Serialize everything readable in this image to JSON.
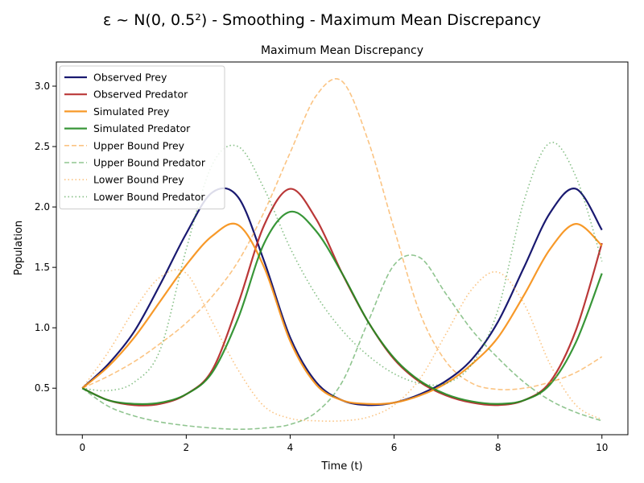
{
  "chart_data": {
    "type": "line",
    "suptitle": "ε ~ N(0, 0.5²) - Smoothing - Maximum Mean Discrepancy",
    "title": "Maximum Mean Discrepancy",
    "xlabel": "Time (t)",
    "ylabel": "Population",
    "xlim": [
      -0.5,
      10.5
    ],
    "ylim": [
      0.115,
      3.2
    ],
    "xticks": [
      0,
      2,
      4,
      6,
      8,
      10
    ],
    "yticks": [
      0.5,
      1.0,
      1.5,
      2.0,
      2.5,
      3.0
    ],
    "legend_position": "upper-left",
    "grid": false,
    "x": [
      0,
      0.5,
      1,
      1.5,
      2,
      2.5,
      3,
      3.5,
      4,
      4.5,
      5,
      5.5,
      6,
      6.5,
      7,
      7.5,
      8,
      8.5,
      9,
      9.5,
      10
    ],
    "series": [
      {
        "name": "Observed Prey",
        "color": "#191970",
        "style": "solid",
        "width": 2.2,
        "values": [
          0.5,
          0.7,
          0.97,
          1.36,
          1.78,
          2.12,
          2.08,
          1.55,
          0.92,
          0.55,
          0.4,
          0.36,
          0.38,
          0.45,
          0.56,
          0.74,
          1.05,
          1.5,
          1.95,
          2.15,
          1.81
        ]
      },
      {
        "name": "Observed Predator",
        "color": "#b22222",
        "style": "solid",
        "width": 2.2,
        "opacity": 0.9,
        "values": [
          0.5,
          0.4,
          0.36,
          0.37,
          0.45,
          0.65,
          1.2,
          1.85,
          2.15,
          1.9,
          1.45,
          1.05,
          0.74,
          0.55,
          0.44,
          0.38,
          0.36,
          0.4,
          0.55,
          0.98,
          1.7
        ]
      },
      {
        "name": "Simulated Prey",
        "color": "#f7941d",
        "style": "solid",
        "width": 2.2,
        "opacity": 0.95,
        "values": [
          0.5,
          0.68,
          0.92,
          1.22,
          1.52,
          1.76,
          1.85,
          1.5,
          0.89,
          0.53,
          0.4,
          0.37,
          0.38,
          0.44,
          0.54,
          0.7,
          0.92,
          1.27,
          1.65,
          1.86,
          1.68
        ]
      },
      {
        "name": "Simulated Predator",
        "color": "#228b22",
        "style": "solid",
        "width": 2.2,
        "opacity": 0.9,
        "values": [
          0.5,
          0.4,
          0.37,
          0.38,
          0.45,
          0.63,
          1.08,
          1.7,
          1.96,
          1.8,
          1.45,
          1.05,
          0.75,
          0.56,
          0.45,
          0.39,
          0.37,
          0.4,
          0.53,
          0.88,
          1.45
        ]
      },
      {
        "name": "Upper Bound Prey",
        "color": "#f7941d",
        "style": "dashed",
        "width": 1.6,
        "opacity": 0.55,
        "values": [
          0.5,
          0.6,
          0.72,
          0.87,
          1.04,
          1.26,
          1.55,
          1.96,
          2.45,
          2.92,
          3.04,
          2.55,
          1.82,
          1.12,
          0.72,
          0.54,
          0.49,
          0.5,
          0.55,
          0.63,
          0.76
        ]
      },
      {
        "name": "Upper Bound Predator",
        "color": "#228b22",
        "style": "dashed",
        "width": 1.6,
        "opacity": 0.5,
        "values": [
          0.5,
          0.35,
          0.27,
          0.22,
          0.19,
          0.17,
          0.16,
          0.17,
          0.2,
          0.3,
          0.55,
          1.05,
          1.52,
          1.58,
          1.28,
          0.98,
          0.75,
          0.55,
          0.4,
          0.3,
          0.23
        ]
      },
      {
        "name": "Lower Bound Prey",
        "color": "#f7941d",
        "style": "dotted",
        "width": 1.6,
        "opacity": 0.55,
        "values": [
          0.5,
          0.8,
          1.15,
          1.42,
          1.45,
          1.05,
          0.65,
          0.35,
          0.25,
          0.23,
          0.23,
          0.26,
          0.36,
          0.58,
          0.95,
          1.32,
          1.46,
          1.2,
          0.7,
          0.36,
          0.24
        ]
      },
      {
        "name": "Lower Bound Predator",
        "color": "#228b22",
        "style": "dotted",
        "width": 1.6,
        "opacity": 0.55,
        "values": [
          0.5,
          0.48,
          0.55,
          0.82,
          1.65,
          2.35,
          2.5,
          2.15,
          1.66,
          1.27,
          0.98,
          0.77,
          0.62,
          0.54,
          0.54,
          0.7,
          1.15,
          2.05,
          2.53,
          2.25,
          1.55
        ]
      }
    ]
  }
}
